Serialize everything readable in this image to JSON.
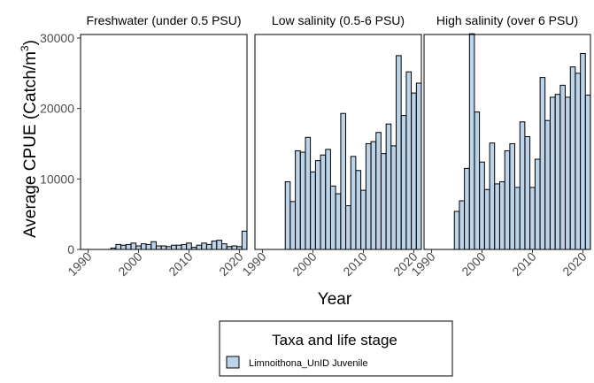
{
  "chart_data": {
    "type": "bar",
    "facet_by": "salinity zone",
    "ylabel_main": "Average CPUE (Catch/m",
    "ylabel_sup": "3",
    "ylabel_end": ")",
    "xlabel": "Year",
    "ylim": [
      0,
      30500
    ],
    "yticks": [
      0,
      10000,
      20000,
      30000
    ],
    "yticklabels": [
      "0",
      "10000",
      "20000",
      "30000"
    ],
    "xlim": [
      1988.5,
      2021.5
    ],
    "xticks": [
      1990,
      2000,
      2010,
      2020
    ],
    "xticklabels": [
      "1990",
      "2000",
      "2010",
      "2020"
    ],
    "bar_color": "#bcd4e9",
    "bar_edge_color": "#000000",
    "legend": {
      "title": "Taxa and life stage",
      "entries": [
        "Limnoithona_UnID Juvenile"
      ],
      "position": "bottom"
    },
    "panels": [
      {
        "title": "Freshwater (under 0.5 PSU)",
        "x": [
          1995,
          1996,
          1997,
          1998,
          1999,
          2000,
          2001,
          2002,
          2003,
          2004,
          2005,
          2006,
          2007,
          2008,
          2009,
          2010,
          2011,
          2012,
          2013,
          2014,
          2015,
          2016,
          2017,
          2018,
          2019,
          2020,
          2021
        ],
        "values": [
          200,
          700,
          600,
          700,
          900,
          500,
          800,
          700,
          1100,
          500,
          500,
          400,
          600,
          600,
          700,
          900,
          300,
          600,
          900,
          700,
          1200,
          1300,
          800,
          400,
          500,
          400,
          2600
        ]
      },
      {
        "title": "Low salinity (0.5-6 PSU)",
        "x": [
          1995,
          1996,
          1997,
          1998,
          1999,
          2000,
          2001,
          2002,
          2003,
          2004,
          2005,
          2006,
          2007,
          2008,
          2009,
          2010,
          2011,
          2012,
          2013,
          2014,
          2015,
          2016,
          2017,
          2018,
          2019,
          2020,
          2021
        ],
        "values": [
          9600,
          6800,
          14000,
          13800,
          15900,
          11000,
          12600,
          13400,
          14200,
          9000,
          7900,
          19300,
          6200,
          13200,
          11200,
          8400,
          15000,
          15300,
          16600,
          13600,
          17800,
          14700,
          27500,
          19000,
          25200,
          22200,
          23600
        ]
      },
      {
        "title": "High salinity (over 6 PSU)",
        "x": [
          1995,
          1996,
          1997,
          1998,
          1999,
          2000,
          2001,
          2002,
          2003,
          2004,
          2005,
          2006,
          2007,
          2008,
          2009,
          2010,
          2011,
          2012,
          2013,
          2014,
          2015,
          2016,
          2017,
          2018,
          2019,
          2020,
          2021
        ],
        "values": [
          5400,
          6900,
          11500,
          30600,
          19500,
          12400,
          8500,
          15100,
          9300,
          9600,
          14000,
          15000,
          8800,
          18100,
          16000,
          8800,
          12800,
          24400,
          18300,
          21600,
          22000,
          23300,
          21600,
          25900,
          25000,
          27800,
          21900
        ]
      }
    ]
  }
}
